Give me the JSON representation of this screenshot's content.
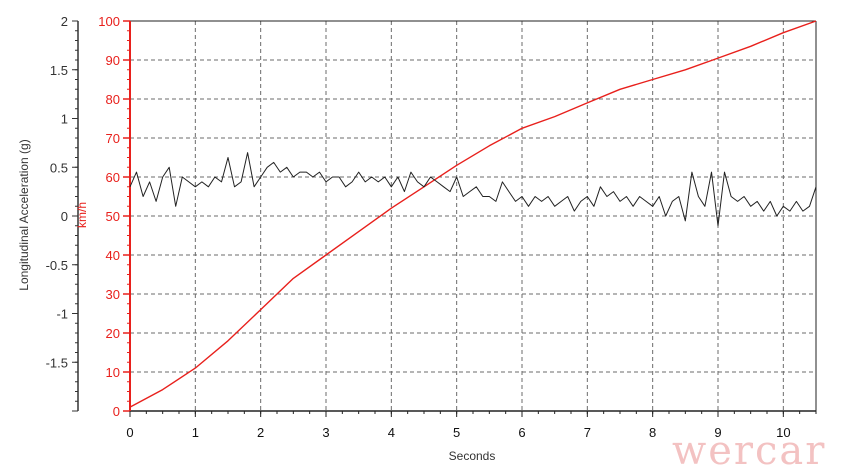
{
  "chart_data": {
    "type": "line",
    "xlabel": "Seconds",
    "ylabel_left": "Longitudinal Acceleration (g)",
    "ylabel_right": "km/h",
    "xlim": [
      0,
      10.5
    ],
    "ylim_left": [
      -2,
      2
    ],
    "ylim_right": [
      0,
      100
    ],
    "x_ticks": [
      "0",
      "1",
      "2",
      "3",
      "4",
      "5",
      "6",
      "7",
      "8",
      "9",
      "10"
    ],
    "left_ticks": [
      "-1.5",
      "-1",
      "-0.5",
      "0",
      "0.5",
      "1",
      "1.5",
      "2"
    ],
    "right_ticks": [
      "0",
      "10",
      "20",
      "30",
      "40",
      "50",
      "60",
      "70",
      "80",
      "90",
      "100"
    ],
    "grid": true,
    "colors": {
      "speed": "#e8201c",
      "accel": "#222222",
      "grid": "#6b6b6b",
      "right_axis": "#e8201c"
    },
    "series": [
      {
        "axis": "right",
        "x": [
          0,
          0.5,
          1,
          1.5,
          2,
          2.5,
          3,
          3.5,
          4,
          4.5,
          5,
          5.5,
          6,
          6.5,
          7,
          7.5,
          8,
          8.5,
          9,
          9.5,
          10,
          10.5
        ],
        "values": [
          1,
          5.5,
          11,
          18,
          26,
          34,
          40,
          46,
          52,
          57.5,
          63,
          68,
          72.5,
          75.5,
          79,
          82.5,
          85,
          87.5,
          90.5,
          93.5,
          97,
          100
        ]
      },
      {
        "axis": "left",
        "x": [
          0,
          0.1,
          0.2,
          0.3,
          0.4,
          0.5,
          0.6,
          0.7,
          0.8,
          0.9,
          1.0,
          1.1,
          1.2,
          1.3,
          1.4,
          1.5,
          1.6,
          1.7,
          1.8,
          1.9,
          2.0,
          2.1,
          2.2,
          2.3,
          2.4,
          2.5,
          2.6,
          2.7,
          2.8,
          2.9,
          3.0,
          3.1,
          3.2,
          3.3,
          3.4,
          3.5,
          3.6,
          3.7,
          3.8,
          3.9,
          4.0,
          4.1,
          4.2,
          4.3,
          4.4,
          4.5,
          4.6,
          4.7,
          4.8,
          4.9,
          5.0,
          5.1,
          5.2,
          5.3,
          5.4,
          5.5,
          5.6,
          5.7,
          5.8,
          5.9,
          6.0,
          6.1,
          6.2,
          6.3,
          6.4,
          6.5,
          6.6,
          6.7,
          6.8,
          6.9,
          7.0,
          7.1,
          7.2,
          7.3,
          7.4,
          7.5,
          7.6,
          7.7,
          7.8,
          7.9,
          8.0,
          8.1,
          8.2,
          8.3,
          8.4,
          8.5,
          8.6,
          8.7,
          8.8,
          8.9,
          9.0,
          9.1,
          9.2,
          9.3,
          9.4,
          9.5,
          9.6,
          9.7,
          9.8,
          9.9,
          10.0,
          10.1,
          10.2,
          10.3,
          10.4,
          10.5
        ],
        "values": [
          0.3,
          0.45,
          0.2,
          0.35,
          0.15,
          0.4,
          0.5,
          0.1,
          0.4,
          0.35,
          0.3,
          0.35,
          0.3,
          0.4,
          0.35,
          0.6,
          0.3,
          0.35,
          0.65,
          0.3,
          0.4,
          0.5,
          0.55,
          0.45,
          0.5,
          0.4,
          0.45,
          0.45,
          0.4,
          0.45,
          0.35,
          0.4,
          0.4,
          0.3,
          0.35,
          0.45,
          0.35,
          0.4,
          0.35,
          0.4,
          0.3,
          0.4,
          0.25,
          0.45,
          0.35,
          0.3,
          0.4,
          0.35,
          0.3,
          0.25,
          0.4,
          0.2,
          0.25,
          0.3,
          0.2,
          0.2,
          0.15,
          0.35,
          0.25,
          0.15,
          0.2,
          0.1,
          0.2,
          0.15,
          0.2,
          0.1,
          0.15,
          0.2,
          0.05,
          0.15,
          0.2,
          0.1,
          0.3,
          0.2,
          0.25,
          0.15,
          0.2,
          0.1,
          0.2,
          0.15,
          0.1,
          0.2,
          0.0,
          0.15,
          0.2,
          -0.05,
          0.45,
          0.2,
          0.1,
          0.45,
          -0.1,
          0.45,
          0.2,
          0.15,
          0.2,
          0.1,
          0.15,
          0.05,
          0.15,
          0.0,
          0.1,
          0.05,
          0.15,
          0.05,
          0.1,
          0.3
        ]
      }
    ]
  },
  "watermark": "wercar"
}
